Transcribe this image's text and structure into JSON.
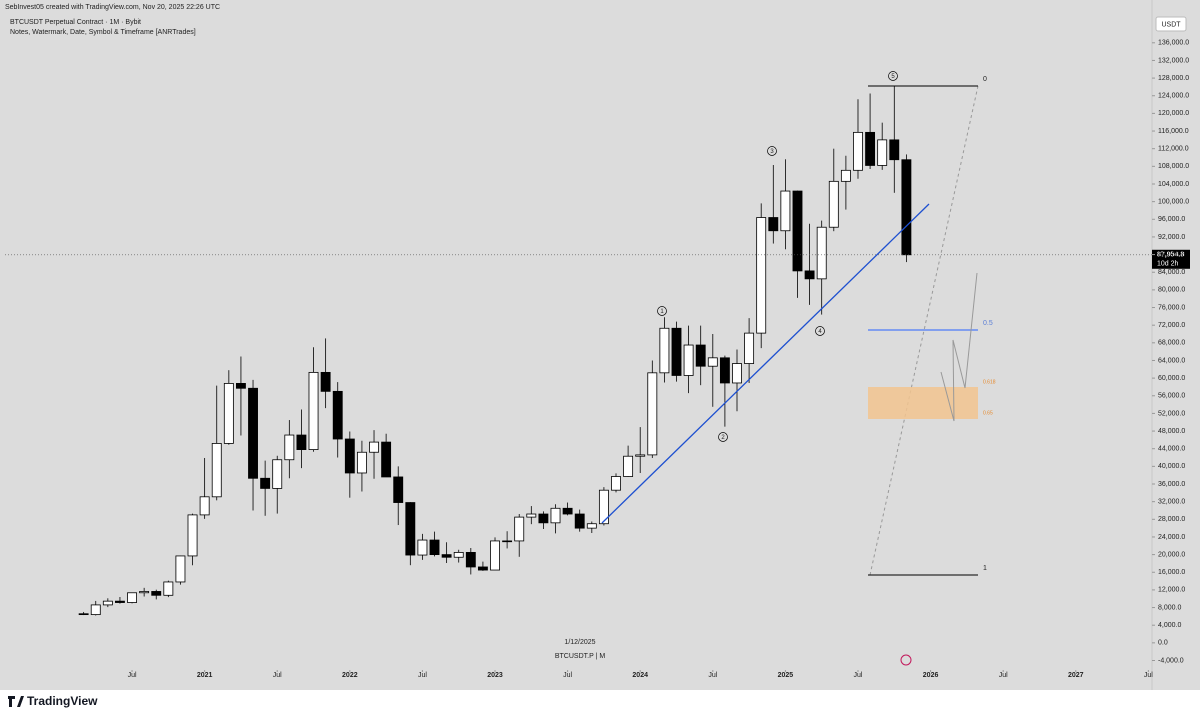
{
  "chart_data": {
    "type": "candlestick",
    "header": "SebInvest05 created with TradingView.com, Nov 20, 2025 22:26 UTC",
    "title": "BTCUSDT Perpetual Contract · 1M · Bybit",
    "subtitle": "Notes, Watermark, Date, Symbol & Timeframe [ANRTrades]",
    "currency": "USDT",
    "watermark_date": "1/12/2025",
    "watermark_symbol": "BTCUSDT.P | M",
    "brand": "TradingView",
    "wave_labels": [
      "1",
      "2",
      "3",
      "4",
      "5"
    ],
    "fib_labels": [
      "0",
      "0.5",
      "0.618",
      "0.65",
      "1"
    ],
    "last_price": {
      "value": 87954.8,
      "label": "87,954.8"
    },
    "countdown": "10d 2h",
    "up_color": "#ffffff",
    "down_color": "#000000",
    "open": [
      6600,
      6400,
      8600,
      9450,
      9140,
      11350,
      11650,
      10780,
      13800,
      19700,
      29000,
      33100,
      45200,
      58800,
      57700,
      37300,
      35000,
      41500,
      47100,
      43800,
      61300,
      57000,
      46200,
      38500,
      43200,
      45500,
      37600,
      31800,
      19900,
      23300,
      20000,
      19400,
      20500,
      17200,
      16500,
      23100,
      23100,
      28500,
      29200,
      27200,
      30500,
      29200,
      26000,
      27000,
      34600,
      37700,
      42300,
      42600,
      61200,
      71300,
      60600,
      67500,
      62700,
      64600,
      58900,
      63300,
      70200,
      96400,
      93400,
      102400,
      84300,
      82500,
      94200,
      104600,
      107100,
      115700,
      108200,
      114000,
      109500
    ],
    "high": [
      7000,
      9500,
      10100,
      10400,
      11400,
      12470,
      12050,
      14100,
      19800,
      29300,
      41900,
      58300,
      61800,
      64900,
      59600,
      41300,
      42400,
      50500,
      52900,
      67000,
      69000,
      59100,
      47900,
      45800,
      48200,
      47400,
      40000,
      31900,
      24700,
      25200,
      22800,
      21100,
      21500,
      18400,
      23900,
      25300,
      29200,
      31000,
      29800,
      31400,
      31800,
      30200,
      27500,
      35300,
      38400,
      44700,
      48900,
      64000,
      73800,
      72800,
      71900,
      71900,
      70000,
      65100,
      66500,
      73600,
      99600,
      108300,
      109600,
      102500,
      95000,
      95700,
      112000,
      110400,
      123200,
      124500,
      117900,
      126200,
      110700
    ],
    "low": [
      6300,
      6200,
      8100,
      8900,
      8950,
      10500,
      9850,
      10370,
      13200,
      17600,
      28100,
      32300,
      44900,
      47000,
      30000,
      28800,
      29300,
      37300,
      39600,
      43300,
      53200,
      42000,
      32900,
      34300,
      37200,
      37600,
      26700,
      17600,
      18800,
      19600,
      18100,
      18200,
      15500,
      16300,
      16500,
      21400,
      19500,
      26900,
      25800,
      24800,
      28900,
      25200,
      24900,
      26600,
      34100,
      37600,
      38500,
      41900,
      59000,
      59200,
      56600,
      58400,
      53500,
      49000,
      52500,
      58900,
      66800,
      90500,
      89200,
      78200,
      76600,
      74400,
      93300,
      98200,
      105200,
      107400,
      107200,
      102000,
      86300
    ],
    "close": [
      6400,
      8600,
      9450,
      9140,
      11350,
      11650,
      10780,
      13800,
      19700,
      29000,
      33100,
      45200,
      58800,
      57700,
      37300,
      35000,
      41500,
      47100,
      43800,
      61300,
      57000,
      46200,
      38500,
      43200,
      45500,
      37600,
      31800,
      19900,
      23300,
      20000,
      19400,
      20500,
      17200,
      16500,
      23100,
      23100,
      28500,
      29200,
      27200,
      30500,
      29200,
      26000,
      27000,
      34600,
      37700,
      42300,
      42600,
      61200,
      71300,
      60600,
      67500,
      62700,
      64600,
      58900,
      63300,
      70200,
      96400,
      93400,
      102400,
      84300,
      82500,
      94200,
      104600,
      107100,
      115700,
      108200,
      114000,
      109500,
      87954.8
    ],
    "xlim": [
      -6.5,
      88.3
    ],
    "xticks": [
      {
        "value": 4,
        "label": "Jul"
      },
      {
        "value": 10,
        "label": "2021"
      },
      {
        "value": 16,
        "label": "Jul"
      },
      {
        "value": 22,
        "label": "2022"
      },
      {
        "value": 28,
        "label": "Jul"
      },
      {
        "value": 34,
        "label": "2023"
      },
      {
        "value": 40,
        "label": "Jul"
      },
      {
        "value": 46,
        "label": "2024"
      },
      {
        "value": 52,
        "label": "Jul"
      },
      {
        "value": 58,
        "label": "2025"
      },
      {
        "value": 64,
        "label": "Jul"
      },
      {
        "value": 70,
        "label": "2026"
      },
      {
        "value": 76,
        "label": "Jul"
      },
      {
        "value": 82,
        "label": "2027"
      },
      {
        "value": 88,
        "label": "Jul"
      }
    ],
    "ylim": [
      -5700,
      145700
    ],
    "yticks": [
      {
        "value": -4000,
        "label": "-4,000.0"
      },
      {
        "value": 0,
        "label": "0.0"
      },
      {
        "value": 4000,
        "label": "4,000.0"
      },
      {
        "value": 8000,
        "label": "8,000.0"
      },
      {
        "value": 12000,
        "label": "12,000.0"
      },
      {
        "value": 16000,
        "label": "16,000.0"
      },
      {
        "value": 20000,
        "label": "20,000.0"
      },
      {
        "value": 24000,
        "label": "24,000.0"
      },
      {
        "value": 28000,
        "label": "28,000.0"
      },
      {
        "value": 32000,
        "label": "32,000.0"
      },
      {
        "value": 36000,
        "label": "36,000.0"
      },
      {
        "value": 40000,
        "label": "40,000.0"
      },
      {
        "value": 44000,
        "label": "44,000.0"
      },
      {
        "value": 48000,
        "label": "48,000.0"
      },
      {
        "value": 52000,
        "label": "52,000.0"
      },
      {
        "value": 56000,
        "label": "56,000.0"
      },
      {
        "value": 60000,
        "label": "60,000.0"
      },
      {
        "value": 64000,
        "label": "64,000.0"
      },
      {
        "value": 68000,
        "label": "68,000.0"
      },
      {
        "value": 72000,
        "label": "72,000.0"
      },
      {
        "value": 76000,
        "label": "76,000.0"
      },
      {
        "value": 80000,
        "label": "80,000.0"
      },
      {
        "value": 84000,
        "label": "84,000.0"
      },
      {
        "value": 88000,
        "label": "88,000.0"
      },
      {
        "value": 92000,
        "label": "92,000.0"
      },
      {
        "value": 96000,
        "label": "96,000.0"
      },
      {
        "value": 100000,
        "label": "100,000.0"
      },
      {
        "value": 104000,
        "label": "104,000.0"
      },
      {
        "value": 108000,
        "label": "108,000.0"
      },
      {
        "value": 112000,
        "label": "112,000.0"
      },
      {
        "value": 116000,
        "label": "116,000.0"
      },
      {
        "value": 120000,
        "label": "120,000.0"
      },
      {
        "value": 124000,
        "label": "124,000.0"
      },
      {
        "value": 128000,
        "label": "128,000.0"
      },
      {
        "value": 132000,
        "label": "132,000.0"
      },
      {
        "value": 136000,
        "label": "136,000.0"
      }
    ]
  }
}
